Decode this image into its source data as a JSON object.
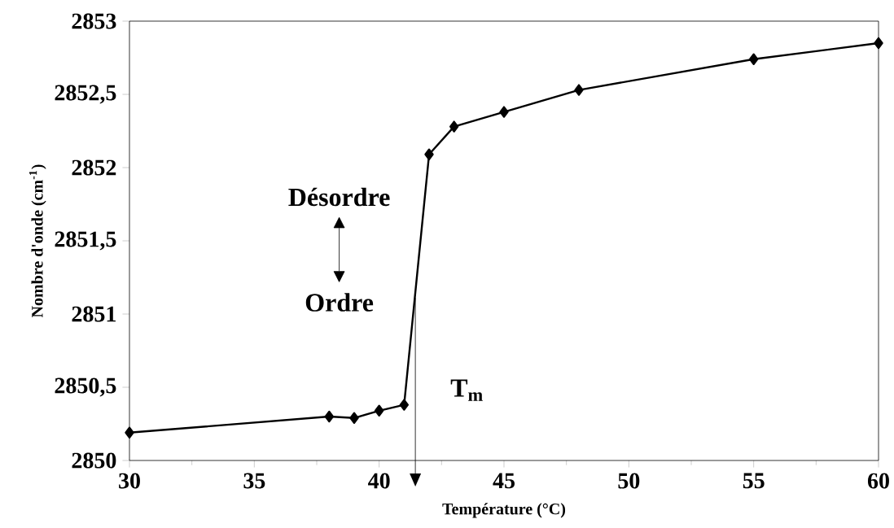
{
  "chart_data": {
    "type": "line",
    "xlabel": "Température (°C)",
    "ylabel": "Nombre d'onde (cm$^{-1}$)",
    "x": [
      30,
      38,
      39,
      40,
      41,
      42,
      43,
      45,
      48,
      55,
      60
    ],
    "series": [
      {
        "color": "#000000",
        "values": [
          2850.19,
          2850.3,
          2850.29,
          2850.34,
          2850.38,
          2852.09,
          2852.28,
          2852.38,
          2852.53,
          2852.74,
          2852.85
        ]
      }
    ],
    "xlim": [
      30,
      60
    ],
    "xticks": [
      30,
      35,
      40,
      45,
      50,
      55,
      60
    ],
    "ylim": [
      2850,
      2853
    ],
    "yticks": [
      2850,
      {
        "value": 2850.5,
        "label": "2850,5"
      },
      2851,
      {
        "value": 2851.5,
        "label": "2851,5"
      },
      2852,
      {
        "value": 2852.5,
        "label": "2852,5"
      },
      2853
    ],
    "annotations": [
      "Désordre",
      "Ordre"
    ],
    "ref_lines": [
      {
        "axis": "x",
        "value": 41.45,
        "label": "T$_{m}$",
        "color": "#000000"
      }
    ],
    "marker": "diamond",
    "line_style": "solid",
    "grid": false
  }
}
